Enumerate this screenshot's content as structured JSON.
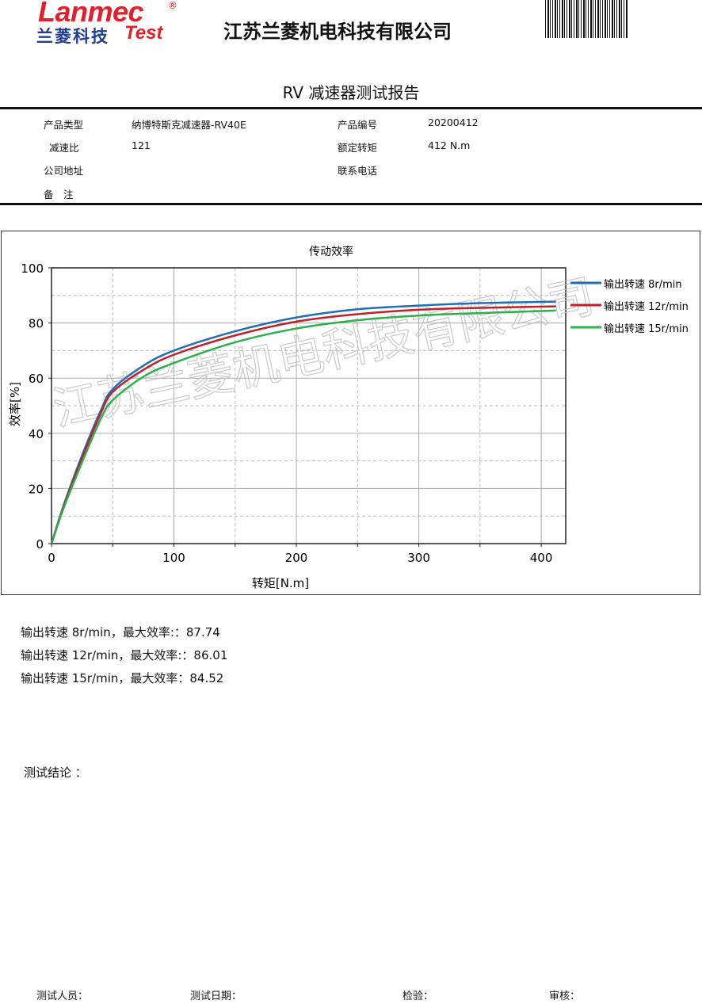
{
  "header": {
    "logo_en": "Lanmec",
    "logo_reg": "®",
    "logo_cn": "兰菱科技",
    "logo_test": "Test",
    "company": "江苏兰菱机电科技有限公司"
  },
  "report_title": "RV 减速器测试报告",
  "info": {
    "product_type_label": "产品类型",
    "product_type": "纳博特斯克减速器-RV40E",
    "product_no_label": "产品编号",
    "product_no": "20200412",
    "ratio_label": "减速比",
    "ratio": "121",
    "rated_torque_label": "额定转矩",
    "rated_torque": "412 N.m",
    "address_label": "公司地址",
    "address": "",
    "phone_label": "联系电话",
    "phone": "",
    "remark_label": "备　注",
    "remark": ""
  },
  "chart_data": {
    "type": "line",
    "title": "传动效率",
    "xlabel": "转矩[N.m]",
    "ylabel": "效率[%]",
    "xlim": [
      0,
      420
    ],
    "ylim": [
      0,
      100
    ],
    "xticks": [
      0,
      100,
      200,
      300,
      400
    ],
    "yticks": [
      0,
      20,
      40,
      60,
      80,
      100
    ],
    "grid": true,
    "legend": "top-right",
    "watermark": "江苏兰菱机电科技有限公司",
    "x": [
      0,
      10,
      25,
      40,
      50,
      75,
      100,
      150,
      200,
      250,
      300,
      350,
      412
    ],
    "series": [
      {
        "name": "输出转速 8r/min",
        "color": "#1f6fb8",
        "values": [
          0,
          14,
          32,
          48,
          56,
          64.5,
          70,
          77,
          82,
          85,
          86.3,
          87.2,
          87.74
        ]
      },
      {
        "name": "输出转速 12r/min",
        "color": "#c0202a",
        "values": [
          0,
          13.5,
          31,
          47,
          55,
          63,
          68.5,
          75.5,
          80.5,
          83.2,
          84.8,
          85.5,
          86.01
        ]
      },
      {
        "name": "输出转速 15r/min",
        "color": "#2bb04a",
        "values": [
          0,
          13,
          29.5,
          45,
          52,
          60.5,
          65.5,
          73,
          78,
          81,
          82.7,
          83.6,
          84.52
        ]
      }
    ]
  },
  "results": [
    "输出转速 8r/min，最大效率:：87.74",
    "输出转速 12r/min，最大效率:：86.01",
    "输出转速 15r/min，最大效率：84.52"
  ],
  "conclusion_label": "测试结论 ：",
  "footer": {
    "tester": "测试人员：",
    "date": "测试日期：",
    "inspect": "检验：",
    "review": "审核："
  }
}
